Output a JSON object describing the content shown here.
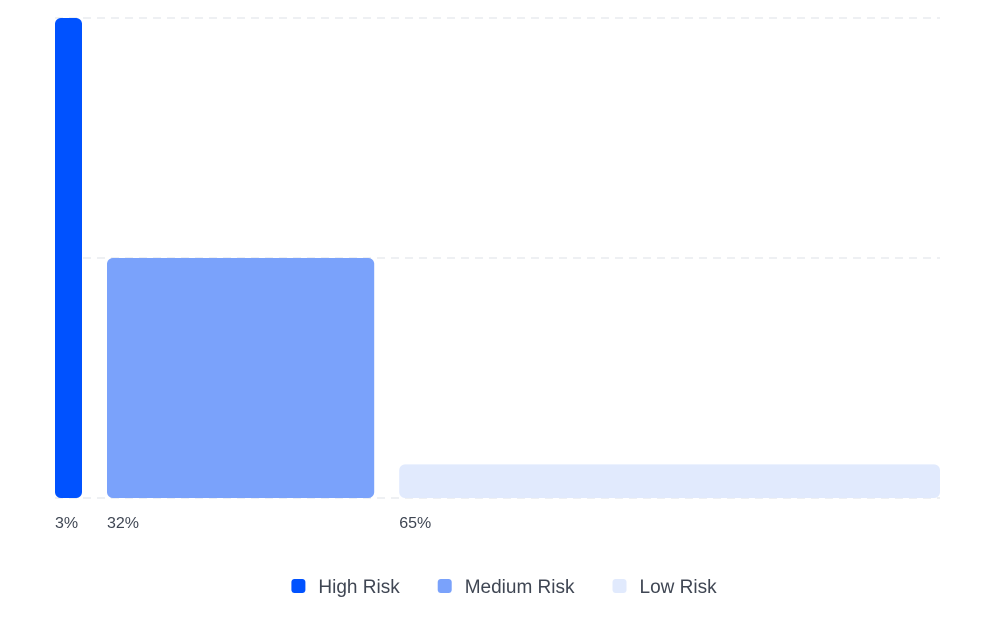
{
  "chart_data": {
    "type": "bar",
    "variant": "variable-width (marimekko-style)",
    "categories": [
      "High Risk",
      "Medium Risk",
      "Low Risk"
    ],
    "shares_percent": [
      3,
      32,
      65
    ],
    "share_labels": [
      "3%",
      "32%",
      "65%"
    ],
    "values": [
      100,
      50,
      7
    ],
    "ylim": [
      0,
      100
    ],
    "grid": true,
    "legend": "bottom-center",
    "colors": [
      "#0052ff",
      "#7aa2fb",
      "#e1eafd"
    ]
  },
  "legend": {
    "items": [
      {
        "label": "High Risk",
        "color": "#0052ff"
      },
      {
        "label": "Medium Risk",
        "color": "#7aa2fb"
      },
      {
        "label": "Low Risk",
        "color": "#e1eafd"
      }
    ]
  }
}
